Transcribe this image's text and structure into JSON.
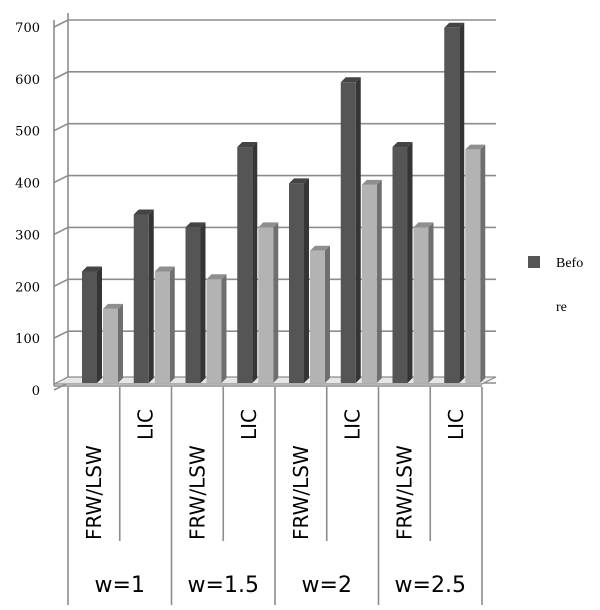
{
  "chart_data": {
    "type": "bar",
    "style": "3d-clustered-column",
    "categories": [
      "FRW/LSW",
      "LIC",
      "FRW/LSW",
      "LIC",
      "FRW/LSW",
      "LIC",
      "FRW/LSW",
      "LIC"
    ],
    "groups": [
      "w=1",
      "w=1.5",
      "w=2",
      "w=2.5"
    ],
    "series": [
      {
        "name": "Before",
        "color": "#555555",
        "values": [
          215,
          325,
          300,
          455,
          385,
          580,
          455,
          685
        ]
      },
      {
        "color": "#b3b3b3",
        "values": [
          143,
          215,
          200,
          300,
          255,
          382,
          300,
          450
        ]
      }
    ],
    "yticks": [
      "0",
      "100",
      "200",
      "300",
      "400",
      "500",
      "600",
      "700"
    ],
    "ylim": [
      0,
      700
    ],
    "grid": true,
    "legend": {
      "position": "right",
      "label_line1": "Befo",
      "label_line2": "re"
    }
  }
}
